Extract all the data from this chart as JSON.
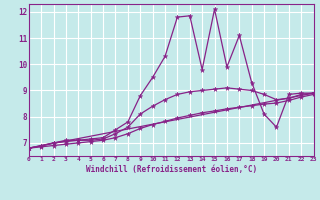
{
  "xlabel": "Windchill (Refroidissement éolien,°C)",
  "background_color": "#c5eaea",
  "grid_color": "#ffffff",
  "line_color": "#882288",
  "xlim": [
    0,
    23
  ],
  "ylim": [
    6.5,
    12.3
  ],
  "xticks": [
    0,
    1,
    2,
    3,
    4,
    5,
    6,
    7,
    8,
    9,
    10,
    11,
    12,
    13,
    14,
    15,
    16,
    17,
    18,
    19,
    20,
    21,
    22,
    23
  ],
  "yticks": [
    7,
    8,
    9,
    10,
    11,
    12
  ],
  "series": [
    {
      "x": [
        0,
        1,
        2,
        3,
        4,
        5,
        6,
        7,
        8,
        9,
        10,
        11,
        12,
        13,
        14,
        15,
        16,
        17,
        18,
        19,
        20,
        21,
        22,
        23
      ],
      "y": [
        6.8,
        6.9,
        7.0,
        7.1,
        7.1,
        7.15,
        7.2,
        7.5,
        7.8,
        8.8,
        9.5,
        10.3,
        11.8,
        11.85,
        9.8,
        12.1,
        9.9,
        11.1,
        9.3,
        8.1,
        7.6,
        8.85,
        8.9,
        8.9
      ]
    },
    {
      "x": [
        0,
        1,
        2,
        3,
        4,
        5,
        6,
        7,
        8,
        9,
        10,
        11,
        12,
        13,
        14,
        15,
        16,
        17,
        18,
        19,
        20,
        21,
        22,
        23
      ],
      "y": [
        6.8,
        6.88,
        7.0,
        7.05,
        7.1,
        7.1,
        7.15,
        7.35,
        7.6,
        8.1,
        8.4,
        8.65,
        8.85,
        8.95,
        9.0,
        9.05,
        9.1,
        9.05,
        9.0,
        8.85,
        8.65,
        8.7,
        8.85,
        8.9
      ]
    },
    {
      "x": [
        0,
        1,
        2,
        3,
        4,
        5,
        6,
        7,
        8,
        9,
        10,
        11,
        12,
        13,
        14,
        15,
        16,
        17,
        18,
        19,
        20,
        21,
        22,
        23
      ],
      "y": [
        6.8,
        6.85,
        6.9,
        6.95,
        7.0,
        7.05,
        7.1,
        7.2,
        7.35,
        7.55,
        7.7,
        7.82,
        7.95,
        8.05,
        8.15,
        8.22,
        8.3,
        8.36,
        8.42,
        8.48,
        8.52,
        8.62,
        8.75,
        8.85
      ]
    },
    {
      "x": [
        0,
        23
      ],
      "y": [
        6.8,
        8.9
      ]
    }
  ]
}
